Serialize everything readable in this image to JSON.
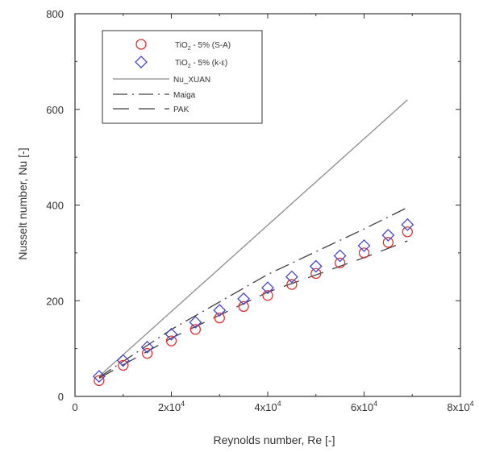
{
  "chart_data": {
    "type": "scatter",
    "title": "",
    "xlabel": "Reynolds number, Re [-]",
    "ylabel": "Nusselt number, Nu [-]",
    "xlim": [
      0,
      80000
    ],
    "ylim": [
      0,
      800
    ],
    "grid": false,
    "legend_position": "top-left",
    "x_ticks": [
      {
        "value": 0,
        "label": "0"
      },
      {
        "value": 20000,
        "label": "2x10",
        "exp": "4"
      },
      {
        "value": 40000,
        "label": "4x10",
        "exp": "4"
      },
      {
        "value": 60000,
        "label": "6x10",
        "exp": "4"
      },
      {
        "value": 80000,
        "label": "8x10",
        "exp": "4"
      }
    ],
    "y_ticks": [
      {
        "value": 0,
        "label": "0"
      },
      {
        "value": 200,
        "label": "200"
      },
      {
        "value": 400,
        "label": "400"
      },
      {
        "value": 600,
        "label": "600"
      },
      {
        "value": 800,
        "label": "800"
      }
    ],
    "series": [
      {
        "name": "TiO2 - 5% (S-A)",
        "legend_main": "TiO",
        "legend_sub": "2",
        "legend_rest": " - 5% (S-A)",
        "kind": "marker",
        "marker": "circle",
        "color": "#e03030",
        "x": [
          5000,
          10000,
          15000,
          20000,
          25000,
          30000,
          35000,
          40000,
          45000,
          50000,
          55000,
          60000,
          65000,
          69000
        ],
        "y": [
          33,
          65,
          90,
          116,
          140,
          164,
          188,
          211,
          234,
          257,
          279,
          300,
          322,
          344
        ]
      },
      {
        "name": "TiO2 - 5% (k-ε)",
        "legend_main": "TiO",
        "legend_sub": "2",
        "legend_rest": " - 5% (k-ε)",
        "kind": "marker",
        "marker": "diamond",
        "color": "#4646c8",
        "x": [
          5000,
          10000,
          15000,
          20000,
          25000,
          30000,
          35000,
          40000,
          45000,
          50000,
          55000,
          60000,
          65000,
          69000
        ],
        "y": [
          42,
          75,
          103,
          130,
          155,
          180,
          204,
          227,
          250,
          272,
          294,
          315,
          337,
          359
        ]
      },
      {
        "name": "Nu_XUAN",
        "kind": "line",
        "dash": "",
        "color": "#8c8c8c",
        "x": [
          5000,
          69000
        ],
        "y": [
          42,
          620
        ]
      },
      {
        "name": "Maiga",
        "kind": "line",
        "dash": "18,6,2,6",
        "color": "#404040",
        "x": [
          5000,
          20000,
          40000,
          60000,
          69000
        ],
        "y": [
          40,
          140,
          255,
          350,
          395
        ]
      },
      {
        "name": "PAK",
        "kind": "line",
        "dash": "20,12",
        "color": "#404040",
        "x": [
          5000,
          20000,
          40000,
          60000,
          69000
        ],
        "y": [
          38,
          122,
          218,
          290,
          325
        ]
      }
    ]
  }
}
